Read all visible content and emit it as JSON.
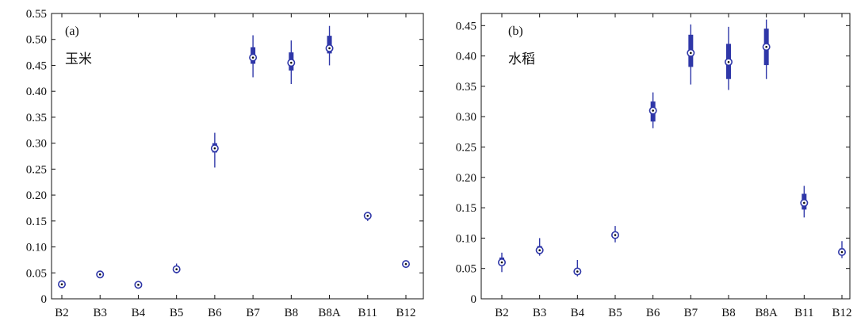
{
  "chart_data": [
    {
      "type": "boxplot",
      "panel_label": "(a)",
      "annotation": "玉米",
      "categories": [
        "B2",
        "B3",
        "B4",
        "B5",
        "B6",
        "B7",
        "B8",
        "B8A",
        "B11",
        "B12"
      ],
      "ylim": [
        0,
        0.55
      ],
      "yticks": [
        "0",
        "0.05",
        "0.10",
        "0.15",
        "0.20",
        "0.25",
        "0.30",
        "0.35",
        "0.40",
        "0.45",
        "0.50",
        "0.55"
      ],
      "grid": false,
      "color": "#2f37a8",
      "median": [
        0.028,
        0.047,
        0.027,
        0.057,
        0.29,
        0.465,
        0.455,
        0.483,
        0.16,
        0.067
      ],
      "q1": [
        0.027,
        0.046,
        0.026,
        0.054,
        0.282,
        0.453,
        0.44,
        0.473,
        0.158,
        0.066
      ],
      "q3": [
        0.03,
        0.049,
        0.029,
        0.061,
        0.3,
        0.485,
        0.475,
        0.507,
        0.163,
        0.069
      ],
      "whisker_low": [
        0.024,
        0.043,
        0.023,
        0.049,
        0.253,
        0.427,
        0.414,
        0.45,
        0.15,
        0.063
      ],
      "whisker_high": [
        0.033,
        0.051,
        0.031,
        0.068,
        0.32,
        0.508,
        0.498,
        0.526,
        0.166,
        0.072
      ]
    },
    {
      "type": "boxplot",
      "panel_label": "(b)",
      "annotation": "水稻",
      "categories": [
        "B2",
        "B3",
        "B4",
        "B5",
        "B6",
        "B7",
        "B8",
        "B8A",
        "B11",
        "B12"
      ],
      "ylim": [
        0,
        0.47
      ],
      "yticks": [
        "0",
        "0.05",
        "0.10",
        "0.15",
        "0.20",
        "0.25",
        "0.30",
        "0.35",
        "0.40",
        "0.45"
      ],
      "grid": false,
      "color": "#2f37a8",
      "median": [
        0.06,
        0.08,
        0.045,
        0.105,
        0.31,
        0.405,
        0.39,
        0.415,
        0.158,
        0.077
      ],
      "q1": [
        0.055,
        0.077,
        0.041,
        0.1,
        0.292,
        0.382,
        0.362,
        0.385,
        0.147,
        0.072
      ],
      "q3": [
        0.068,
        0.087,
        0.05,
        0.11,
        0.325,
        0.435,
        0.42,
        0.445,
        0.173,
        0.083
      ],
      "whisker_low": [
        0.044,
        0.071,
        0.037,
        0.093,
        0.281,
        0.353,
        0.344,
        0.362,
        0.134,
        0.067
      ],
      "whisker_high": [
        0.076,
        0.1,
        0.064,
        0.12,
        0.34,
        0.452,
        0.448,
        0.46,
        0.186,
        0.095
      ]
    }
  ]
}
